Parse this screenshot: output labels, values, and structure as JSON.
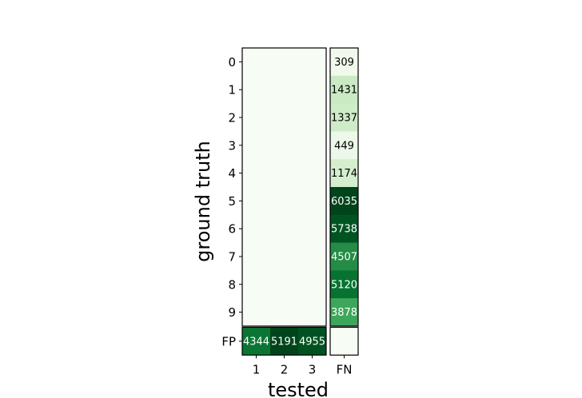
{
  "chart_data": {
    "type": "heatmap",
    "title": "",
    "xlabel": "tested",
    "ylabel": "ground truth",
    "x_ticks": [
      "1",
      "2",
      "3",
      "FN"
    ],
    "y_ticks": [
      "0",
      "1",
      "2",
      "3",
      "4",
      "5",
      "6",
      "7",
      "8",
      "9",
      "FP"
    ],
    "colormap": "Greens",
    "main_matrix": [
      [
        0,
        0,
        0
      ],
      [
        0,
        0,
        0
      ],
      [
        0,
        0,
        0
      ],
      [
        0,
        0,
        0
      ],
      [
        0,
        0,
        0
      ],
      [
        0,
        0,
        0
      ],
      [
        0,
        0,
        0
      ],
      [
        0,
        0,
        0
      ],
      [
        0,
        0,
        0
      ],
      [
        0,
        0,
        0
      ]
    ],
    "fn_column": [
      309,
      1431,
      1337,
      449,
      1174,
      6035,
      5738,
      4507,
      5120,
      3878
    ],
    "fp_row": [
      4344,
      5191,
      4955
    ],
    "fn_max": 6035,
    "fp_max": 5191
  }
}
